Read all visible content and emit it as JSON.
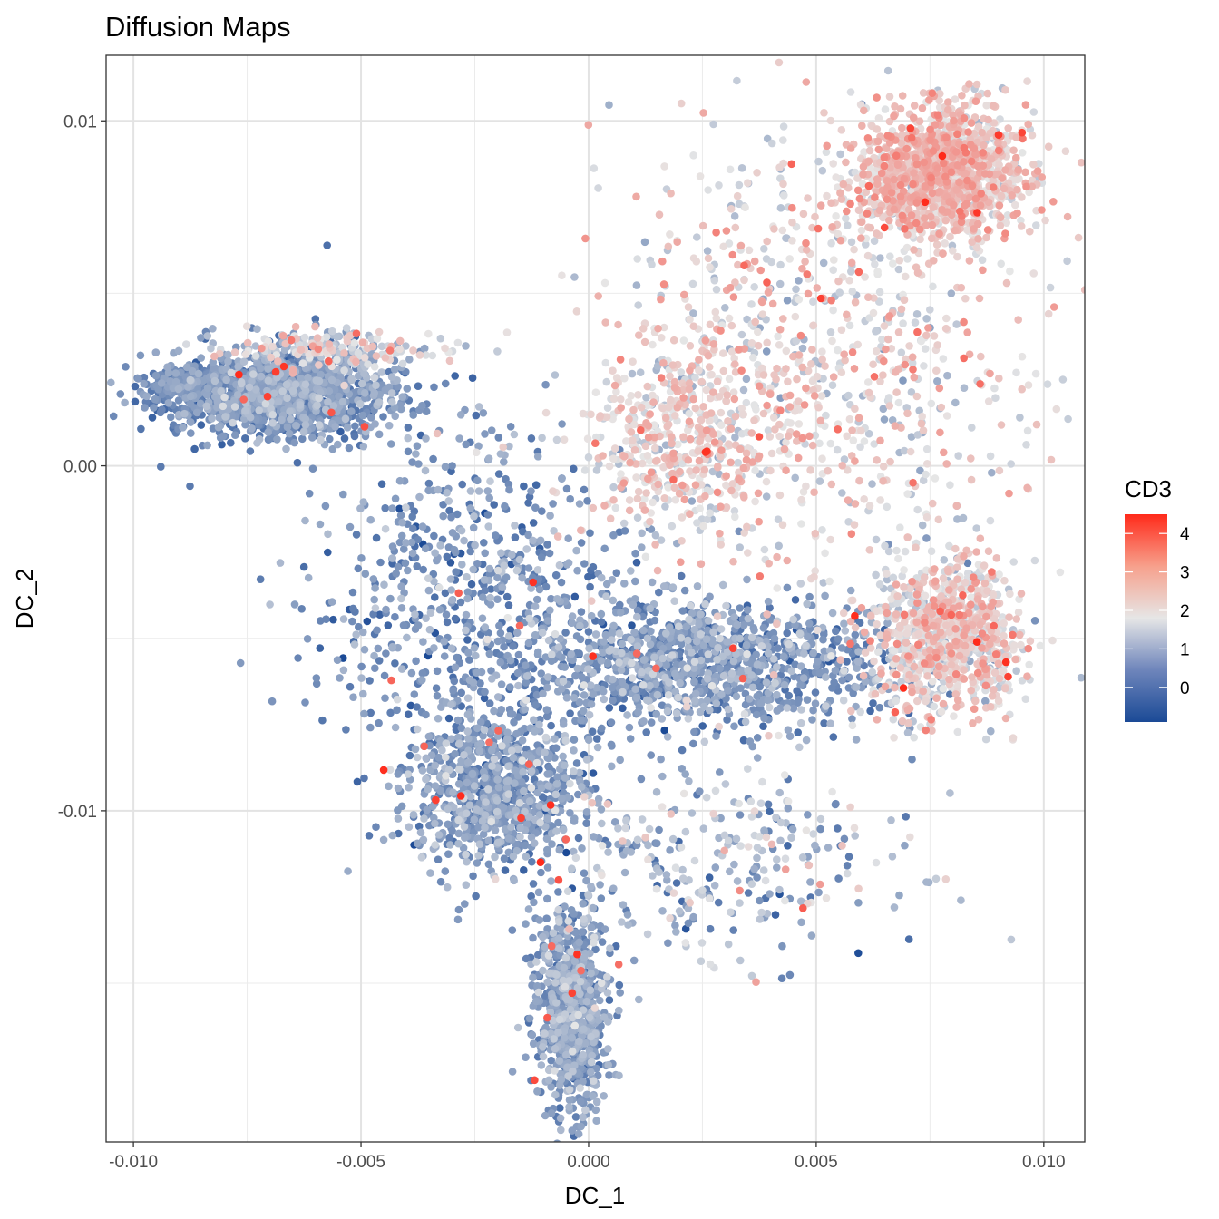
{
  "chart_data": {
    "type": "scatter",
    "title": "Diffusion Maps",
    "xlabel": "DC_1",
    "ylabel": "DC_2",
    "xlim": [
      -0.0106,
      0.0109
    ],
    "ylim": [
      -0.0196,
      0.0119
    ],
    "x_ticks": [
      -0.01,
      -0.005,
      0.0,
      0.005,
      0.01
    ],
    "x_tick_labels": [
      "-0.010",
      "-0.005",
      "0.000",
      "0.005",
      "0.010"
    ],
    "y_ticks": [
      -0.01,
      0.0,
      0.01
    ],
    "y_tick_labels": [
      "-0.01",
      "0.00",
      "0.01"
    ],
    "grid": true,
    "legend": {
      "title": "CD3",
      "position": "right",
      "ticks": [
        0,
        1,
        2,
        3,
        4
      ],
      "tick_labels": [
        "0",
        "1",
        "2",
        "3",
        "4"
      ],
      "range": [
        -0.9,
        4.5
      ],
      "colors": {
        "low": "#1b4a96",
        "mid": "#e6e6e6",
        "high": "#ff2a1a"
      },
      "midpoint": 1.8
    },
    "clusters": [
      {
        "region": "upper-left arm",
        "center": [
          -0.0068,
          0.0021
        ],
        "spread": [
          0.0012,
          0.00065
        ],
        "count": 1400,
        "cd3_mean": 0.35,
        "cd3_sd": 0.45
      },
      {
        "region": "upper-left arm tail",
        "center": [
          -0.009,
          0.0023
        ],
        "spread": [
          0.0004,
          0.0003
        ],
        "count": 150,
        "cd3_mean": 0.2,
        "cd3_sd": 0.35
      },
      {
        "region": "upper-left arm top edge",
        "center": [
          -0.0055,
          0.0034
        ],
        "spread": [
          0.0012,
          0.0003
        ],
        "count": 180,
        "cd3_mean": 1.6,
        "cd3_sd": 0.6
      },
      {
        "region": "upper-right corner",
        "center": [
          0.0078,
          0.0085
        ],
        "spread": [
          0.0009,
          0.0009
        ],
        "count": 1300,
        "cd3_mean": 2.2,
        "cd3_sd": 0.45
      },
      {
        "region": "right middle",
        "center": [
          0.0078,
          -0.005
        ],
        "spread": [
          0.0008,
          0.0011
        ],
        "count": 950,
        "cd3_mean": 1.9,
        "cd3_sd": 0.55
      },
      {
        "region": "middle band",
        "center": [
          0.0025,
          -0.0058
        ],
        "spread": [
          0.0022,
          0.0009
        ],
        "count": 1200,
        "cd3_mean": 0.45,
        "cd3_sd": 0.45
      },
      {
        "region": "lower-left arm",
        "center": [
          -0.002,
          -0.0095
        ],
        "spread": [
          0.001,
          0.0012
        ],
        "count": 900,
        "cd3_mean": 0.45,
        "cd3_sd": 0.45
      },
      {
        "region": "bottom tip",
        "center": [
          -0.0004,
          -0.0158
        ],
        "spread": [
          0.0004,
          0.0015
        ],
        "count": 800,
        "cd3_mean": 0.55,
        "cd3_sd": 0.45
      },
      {
        "region": "upper-middle cloud",
        "center": [
          0.002,
          0.0008
        ],
        "spread": [
          0.001,
          0.0012
        ],
        "count": 450,
        "cd3_mean": 2.0,
        "cd3_sd": 0.5
      },
      {
        "region": "right triangle interior",
        "center": [
          0.005,
          0.003
        ],
        "spread": [
          0.0025,
          0.0035
        ],
        "count": 900,
        "cd3_mean": 1.9,
        "cd3_sd": 0.6
      },
      {
        "region": "central scatter",
        "center": [
          -0.0025,
          -0.0035
        ],
        "spread": [
          0.0018,
          0.0025
        ],
        "count": 650,
        "cd3_mean": 0.35,
        "cd3_sd": 0.45
      },
      {
        "region": "lower-right sparse",
        "center": [
          0.003,
          -0.0115
        ],
        "spread": [
          0.002,
          0.0015
        ],
        "count": 300,
        "cd3_mean": 1.0,
        "cd3_sd": 0.7
      }
    ]
  }
}
